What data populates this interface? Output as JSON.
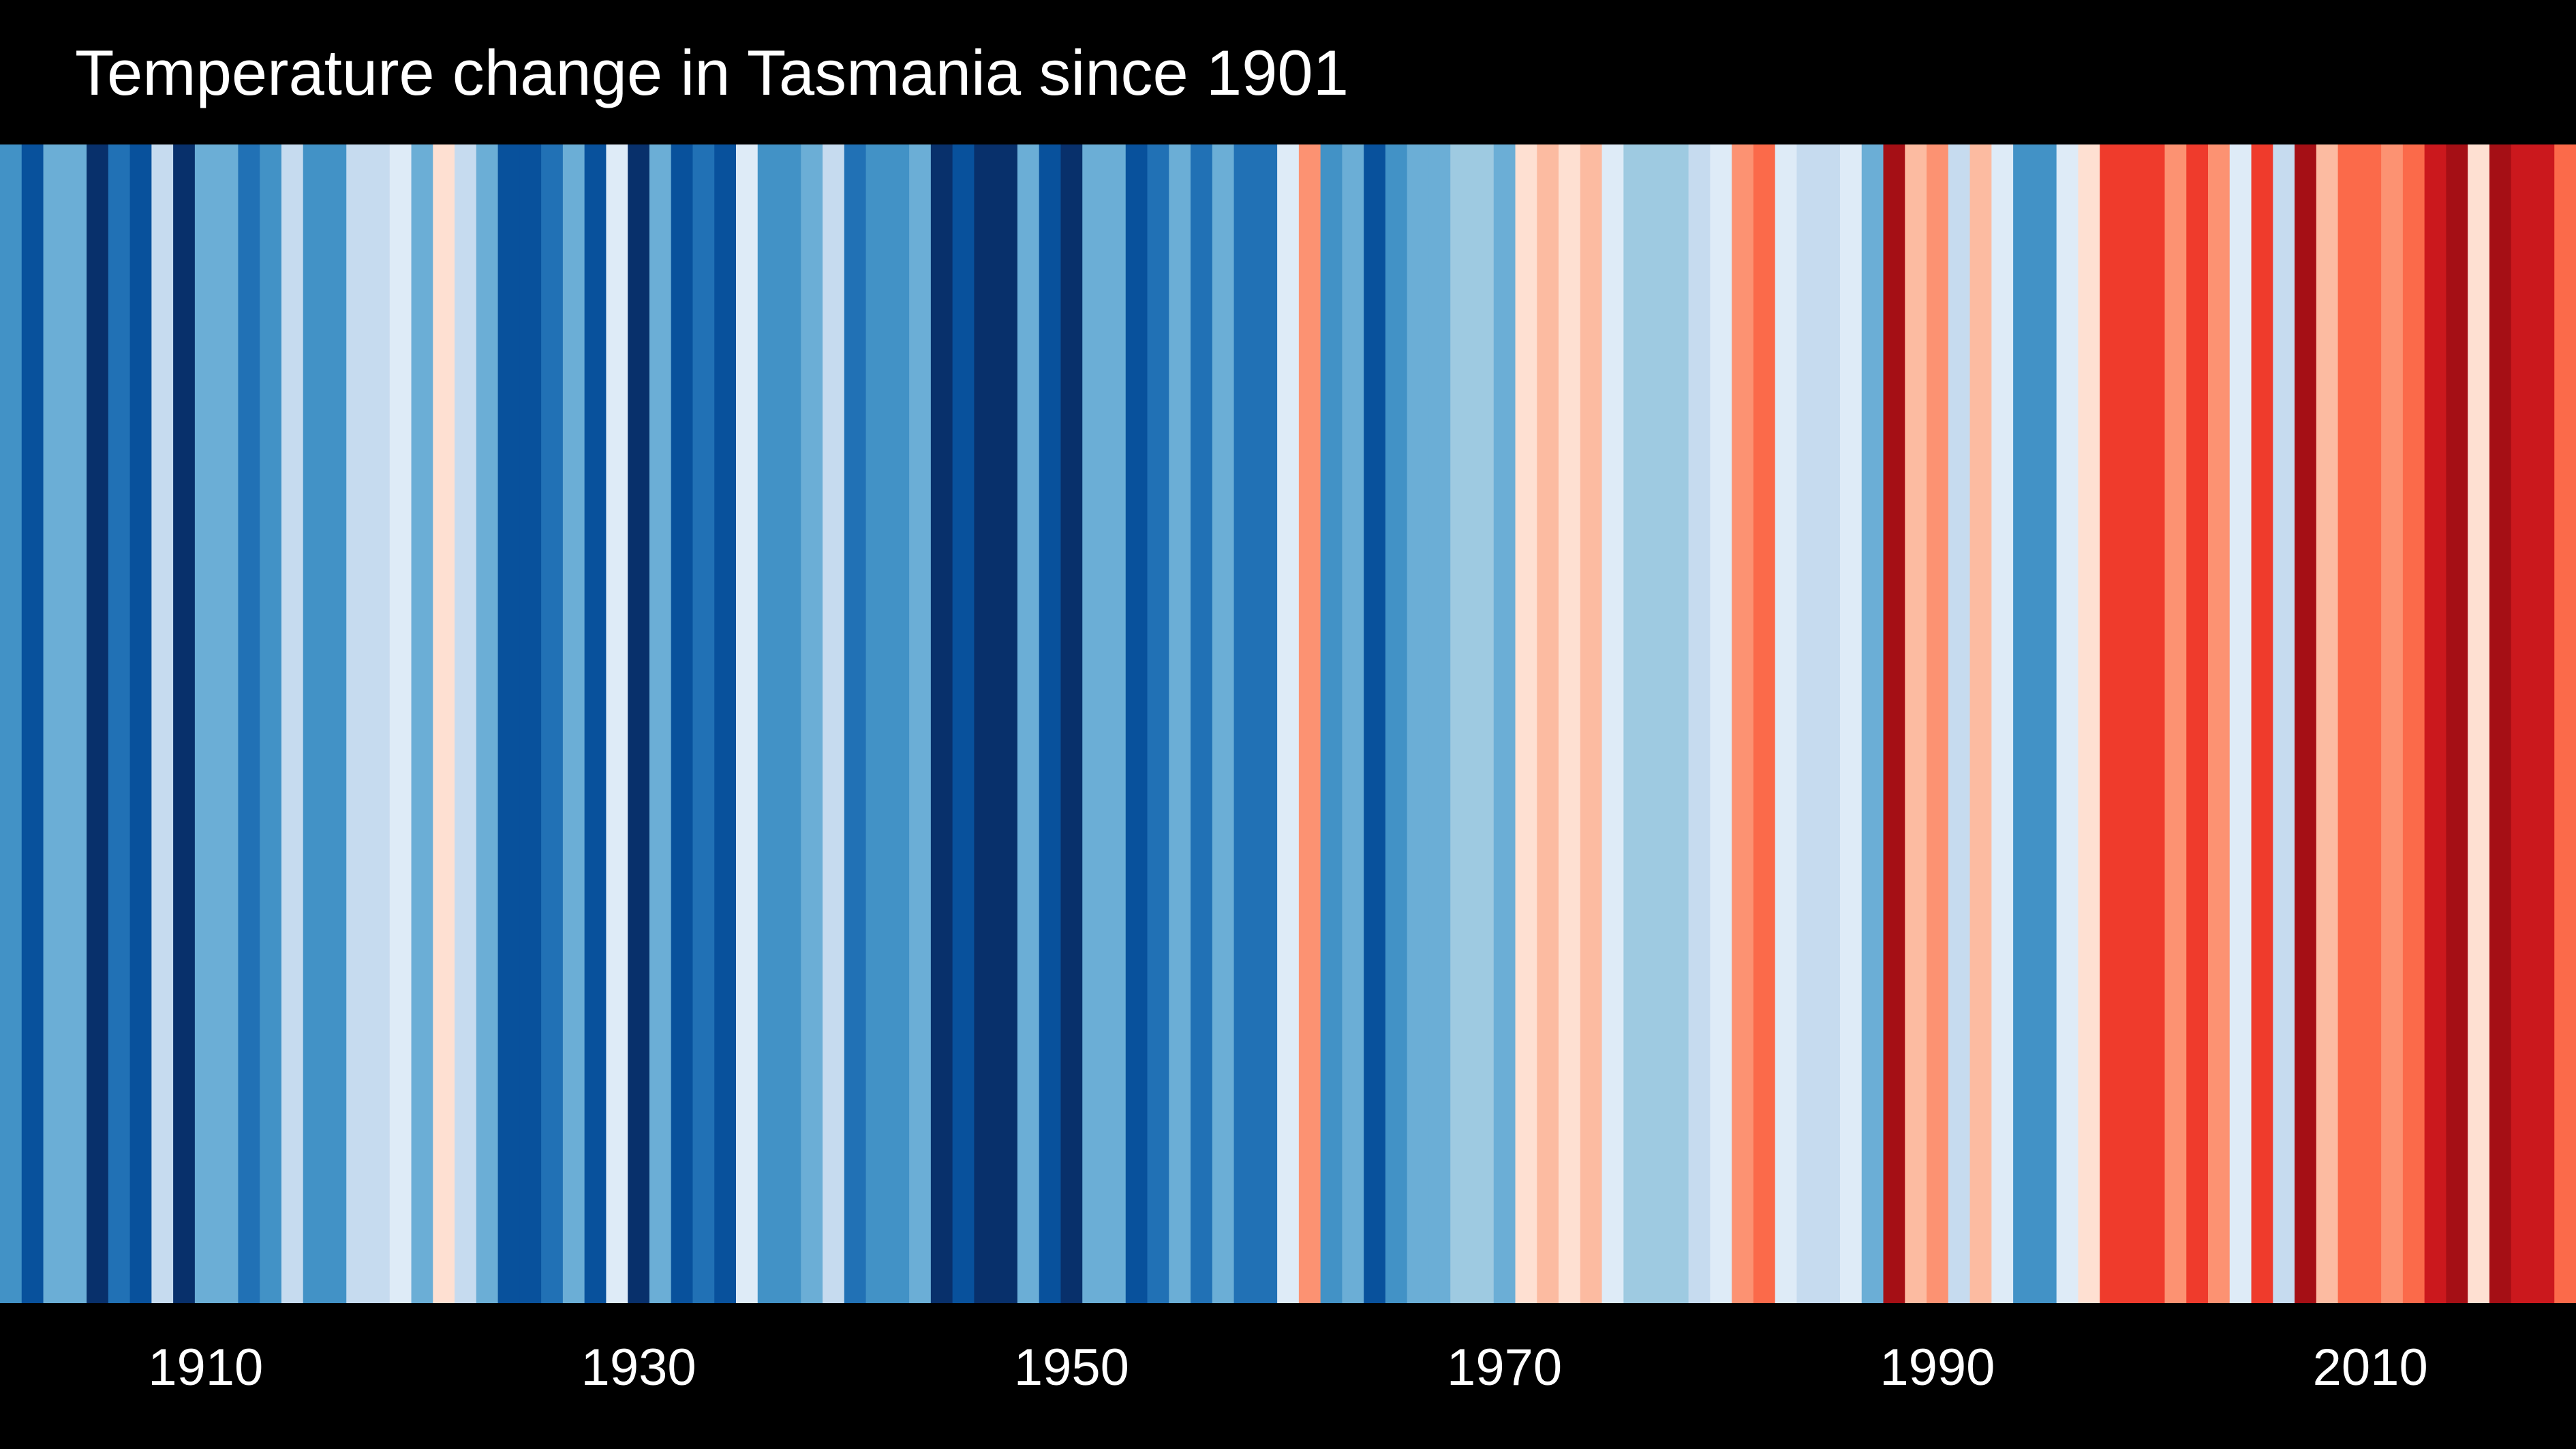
{
  "chart_data": {
    "type": "heatmap",
    "title": "Temperature change in Tasmania since 1901",
    "x_range": [
      1901,
      2019
    ],
    "x_ticks": [
      1910,
      1930,
      1950,
      1970,
      1990,
      2010
    ],
    "grid": false,
    "legend": "none",
    "palette_note": "blue = cooler, red = warmer",
    "series": [
      {
        "x": [
          1901,
          1902,
          1903,
          1904,
          1905,
          1906,
          1907,
          1908,
          1909,
          1910,
          1911,
          1912,
          1913,
          1914,
          1915,
          1916,
          1917,
          1918,
          1919,
          1920,
          1921,
          1922,
          1923,
          1924,
          1925,
          1926,
          1927,
          1928,
          1929,
          1930,
          1931,
          1932,
          1933,
          1934,
          1935,
          1936,
          1937,
          1938,
          1939,
          1940,
          1941,
          1942,
          1943,
          1944,
          1945,
          1946,
          1947,
          1948,
          1949,
          1950,
          1951,
          1952,
          1953,
          1954,
          1955,
          1956,
          1957,
          1958,
          1959,
          1960,
          1961,
          1962,
          1963,
          1964,
          1965,
          1966,
          1967,
          1968,
          1969,
          1970,
          1971,
          1972,
          1973,
          1974,
          1975,
          1976,
          1977,
          1978,
          1979,
          1980,
          1981,
          1982,
          1983,
          1984,
          1985,
          1986,
          1987,
          1988,
          1989,
          1990,
          1991,
          1992,
          1993,
          1994,
          1995,
          1996,
          1997,
          1998,
          1999,
          2000,
          2001,
          2002,
          2003,
          2004,
          2005,
          2006,
          2007,
          2008,
          2009,
          2010,
          2011,
          2012,
          2013,
          2014,
          2015,
          2016,
          2017,
          2018,
          2019
        ],
        "colors": [
          "#4292c6",
          "#08519c",
          "#6baed6",
          "#6baed6",
          "#08306b",
          "#2171b5",
          "#08519c",
          "#c6dbef",
          "#08306b",
          "#6baed6",
          "#6baed6",
          "#2171b5",
          "#4292c6",
          "#c6dbef",
          "#4292c6",
          "#4292c6",
          "#c6dbef",
          "#c6dbef",
          "#deebf7",
          "#6baed6",
          "#fee0d2",
          "#c6dbef",
          "#6baed6",
          "#08519c",
          "#08519c",
          "#2171b5",
          "#6baed6",
          "#08519c",
          "#deebf7",
          "#08306b",
          "#6baed6",
          "#08519c",
          "#2171b5",
          "#08519c",
          "#deebf7",
          "#4292c6",
          "#4292c6",
          "#6baed6",
          "#c6dbef",
          "#2171b5",
          "#4292c6",
          "#4292c6",
          "#6baed6",
          "#08306b",
          "#08519c",
          "#08306b",
          "#08306b",
          "#6baed6",
          "#08519c",
          "#08306b",
          "#6baed6",
          "#6baed6",
          "#08519c",
          "#2171b5",
          "#6baed6",
          "#2171b5",
          "#6baed6",
          "#2171b5",
          "#2171b5",
          "#deebf7",
          "#fc9272",
          "#4292c6",
          "#6baed6",
          "#08519c",
          "#4292c6",
          "#6baed6",
          "#6baed6",
          "#9ecae1",
          "#9ecae1",
          "#6baed6",
          "#fee0d2",
          "#fcbba1",
          "#fee0d2",
          "#fcbba1",
          "#deebf7",
          "#9ecae1",
          "#9ecae1",
          "#9ecae1",
          "#c6dbef",
          "#deebf7",
          "#fc9272",
          "#fb6a4a",
          "#deebf7",
          "#c6dbef",
          "#c6dbef",
          "#deebf7",
          "#6baed6",
          "#a50f15",
          "#fcbba1",
          "#fc9272",
          "#c6dbef",
          "#fcbba1",
          "#deebf7",
          "#4292c6",
          "#4292c6",
          "#deebf7",
          "#fee0d2",
          "#ef3b2c",
          "#ef3b2c",
          "#ef3b2c",
          "#fc9272",
          "#ef3b2c",
          "#fc9272",
          "#deebf7",
          "#ef3b2c",
          "#c6dbef",
          "#a50f15",
          "#fcbba1",
          "#fb6a4a",
          "#fb6a4a",
          "#fc9272",
          "#fb6a4a",
          "#cb181d",
          "#a50f15",
          "#fee0d2",
          "#a50f15",
          "#cb181d",
          "#cb181d",
          "#fb6a4a"
        ]
      }
    ]
  }
}
